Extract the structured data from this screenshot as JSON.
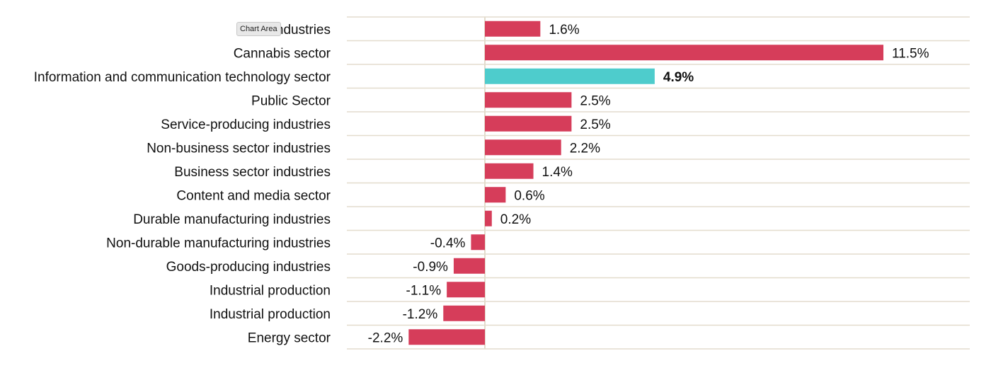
{
  "chart_data": {
    "type": "bar",
    "orientation": "horizontal",
    "categories": [
      "All industries",
      "Cannabis sector",
      "Information and communication technology sector",
      "Public Sector",
      "Service-producing industries",
      "Non-business sector industries",
      "Business sector industries",
      "Content and media sector",
      "Durable manufacturing industries",
      "Non-durable manufacturing industries",
      "Goods-producing industries",
      "Industrial production",
      "Industrial production",
      "Energy sector"
    ],
    "values": [
      1.6,
      11.5,
      4.9,
      2.5,
      2.5,
      2.2,
      1.4,
      0.6,
      0.2,
      -0.4,
      -0.9,
      -1.1,
      -1.2,
      -2.2
    ],
    "value_labels": [
      "1.6%",
      "11.5%",
      "4.9%",
      "2.5%",
      "2.5%",
      "2.2%",
      "1.4%",
      "0.6%",
      "0.2%",
      "-0.4%",
      "-0.9%",
      "-1.1%",
      "-1.2%",
      "-2.2%"
    ],
    "highlight_index": 2,
    "colors": {
      "default": "#d63d5a",
      "highlight": "#4ecccc",
      "grid": "#e3dccd"
    },
    "xlim": [
      -4,
      14
    ],
    "title": "",
    "xlabel": "",
    "ylabel": "",
    "grid": true
  },
  "tooltip": {
    "text": "Chart Area"
  }
}
